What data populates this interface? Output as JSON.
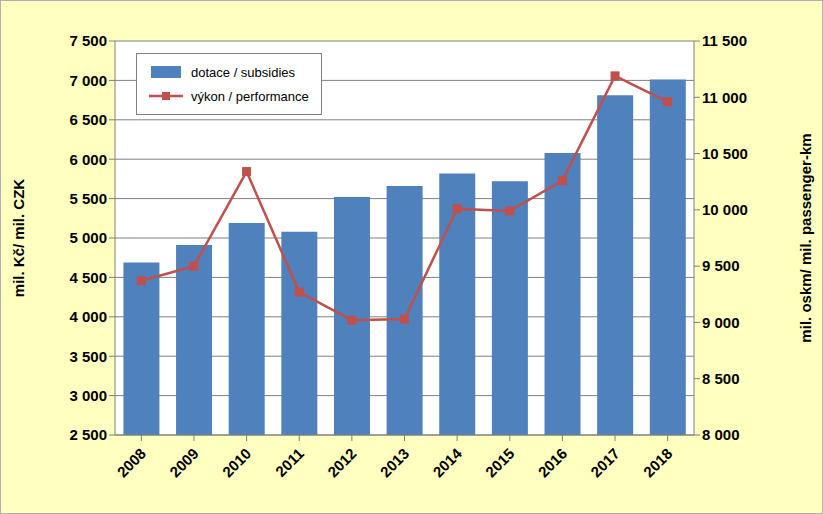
{
  "chart_data": {
    "type": "bar",
    "categories": [
      "2008",
      "2009",
      "2010",
      "2011",
      "2012",
      "2013",
      "2014",
      "2015",
      "2016",
      "2017",
      "2018"
    ],
    "series": [
      {
        "name": "dotace / subsidies",
        "type": "bar",
        "color": "#4f81bd",
        "values": [
          4690,
          4910,
          5190,
          5080,
          5520,
          5660,
          5820,
          5720,
          6080,
          6810,
          7010
        ]
      },
      {
        "name": "výkon / performance",
        "type": "line",
        "axis": "y2",
        "color": "#c0504d",
        "marker": "square",
        "values": [
          9370,
          9500,
          10340,
          9270,
          9020,
          9030,
          10010,
          9990,
          10260,
          11190,
          10960
        ]
      }
    ],
    "y_label": "mil. Kč/ mil. CZK",
    "y2_label": "mil. oskm/ mil. passenger-km",
    "ylim": [
      2500,
      7500
    ],
    "yticks": [
      {
        "value": 2500,
        "label": "2 500"
      },
      {
        "value": 3000,
        "label": "3 000"
      },
      {
        "value": 3500,
        "label": "3 500"
      },
      {
        "value": 4000,
        "label": "4 000"
      },
      {
        "value": 4500,
        "label": "4 500"
      },
      {
        "value": 5000,
        "label": "5 000"
      },
      {
        "value": 5500,
        "label": "5 500"
      },
      {
        "value": 6000,
        "label": "6 000"
      },
      {
        "value": 6500,
        "label": "6 500"
      },
      {
        "value": 7000,
        "label": "7 000"
      },
      {
        "value": 7500,
        "label": "7 500"
      }
    ],
    "y2lim": [
      8000,
      11500
    ],
    "y2ticks": [
      {
        "value": 8000,
        "label": "8 000"
      },
      {
        "value": 8500,
        "label": "8 500"
      },
      {
        "value": 9000,
        "label": "9 000"
      },
      {
        "value": 9500,
        "label": "9 500"
      },
      {
        "value": 10000,
        "label": "10 000"
      },
      {
        "value": 10500,
        "label": "10 500"
      },
      {
        "value": 11000,
        "label": "11 000"
      },
      {
        "value": 11500,
        "label": "11 500"
      }
    ],
    "grid": true,
    "legend": "upper left"
  }
}
